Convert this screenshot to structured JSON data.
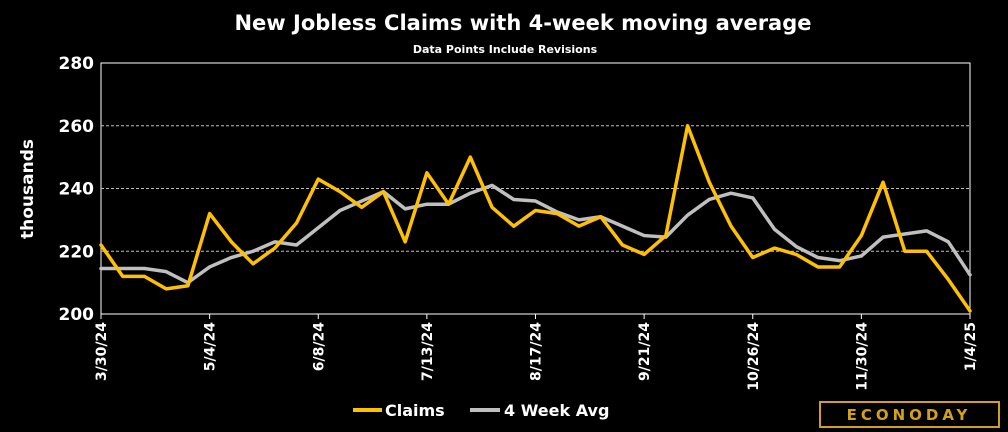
{
  "chart_data": {
    "type": "line",
    "title": "New Jobless Claims with 4-week moving average",
    "subtitle": "Data Points Include Revisions",
    "ylabel": "thousands",
    "xlabel": "",
    "ylim": [
      200,
      280
    ],
    "yticks": [
      200,
      220,
      240,
      260,
      280
    ],
    "grid": true,
    "legend_position": "bottom",
    "x": [
      "3/30/24",
      "4/6/24",
      "4/13/24",
      "4/20/24",
      "4/27/24",
      "5/4/24",
      "5/11/24",
      "5/18/24",
      "5/25/24",
      "6/1/24",
      "6/8/24",
      "6/15/24",
      "6/22/24",
      "6/29/24",
      "7/6/24",
      "7/13/24",
      "7/20/24",
      "7/27/24",
      "8/3/24",
      "8/10/24",
      "8/17/24",
      "8/24/24",
      "8/31/24",
      "9/7/24",
      "9/14/24",
      "9/21/24",
      "9/28/24",
      "10/5/24",
      "10/12/24",
      "10/19/24",
      "10/26/24",
      "11/2/24",
      "11/9/24",
      "11/16/24",
      "11/23/24",
      "11/30/24",
      "12/7/24",
      "12/14/24",
      "12/21/24",
      "12/28/24",
      "1/4/25"
    ],
    "xtick_labels": [
      "3/30/24",
      "5/4/24",
      "6/8/24",
      "7/13/24",
      "8/17/24",
      "9/21/24",
      "10/26/24",
      "11/30/24",
      "1/4/25"
    ],
    "series": [
      {
        "name": "Claims",
        "color": "#FFC000",
        "values": [
          222,
          212,
          212,
          208,
          209,
          232,
          223,
          216,
          221,
          229,
          243,
          239,
          234,
          239,
          223,
          245,
          235,
          250,
          234,
          228,
          233,
          232,
          228,
          231,
          222,
          219,
          225,
          260,
          242,
          228,
          218,
          221,
          219,
          215,
          215,
          225,
          242,
          220,
          220,
          211,
          201
        ]
      },
      {
        "name": "4 Week Avg",
        "color": "#BFBFBF",
        "values": [
          214.5,
          214.5,
          214.5,
          213.5,
          210,
          215,
          218,
          220,
          223,
          222,
          227.5,
          233,
          236,
          239,
          233.5,
          235,
          235,
          238.5,
          241,
          236.5,
          236,
          232.5,
          230,
          231,
          228,
          225,
          224.5,
          231.5,
          236.5,
          238.5,
          237,
          227,
          221.5,
          218,
          217,
          218.5,
          224.5,
          225.5,
          226.5,
          223,
          212.5
        ]
      }
    ]
  },
  "brand": {
    "logo_text": "ECONODAY"
  },
  "colors": {
    "background": "#000000",
    "grid": "#BFBFBF",
    "logo": "#D4A017"
  }
}
